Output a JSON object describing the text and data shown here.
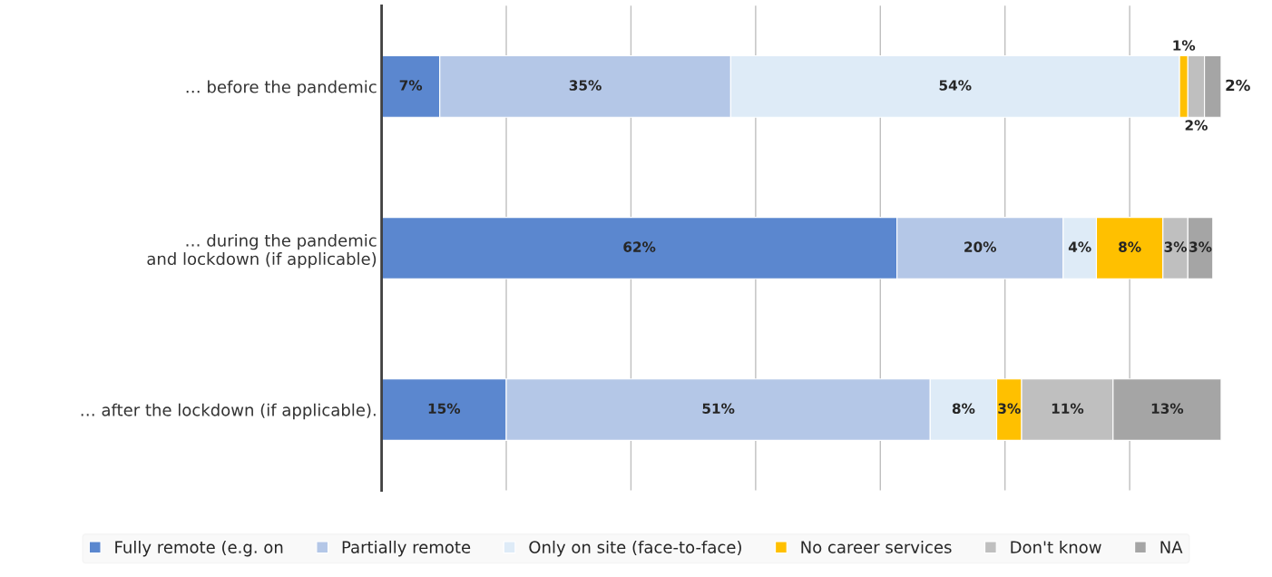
{
  "chart_data": {
    "type": "bar",
    "orientation": "horizontal",
    "stacked": true,
    "categories": [
      "… before the pandemic",
      "… during the pandemic\nand lockdown (if applicable)",
      "… after the lockdown (if applicable)."
    ],
    "series": [
      {
        "name": "Fully remote (e.g. on",
        "color": "#5b87cf",
        "values": [
          7,
          62,
          15
        ],
        "value_labels": [
          "7%",
          "62%",
          "15%"
        ]
      },
      {
        "name": "Partially remote",
        "color": "#b4c7e7",
        "values": [
          35,
          20,
          51
        ],
        "value_labels": [
          "35%",
          "20%",
          "51%"
        ]
      },
      {
        "name": "Only on site (face-to-face)",
        "color": "#deebf7",
        "values": [
          54,
          4,
          8
        ],
        "value_labels": [
          "54%",
          "4%",
          "8%"
        ]
      },
      {
        "name": "No career services",
        "color": "#ffc000",
        "values": [
          1,
          8,
          3
        ],
        "value_labels": [
          "1%",
          "8%",
          "3%"
        ]
      },
      {
        "name": "Don't know",
        "color": "#bfbfbf",
        "values": [
          2,
          3,
          11
        ],
        "value_labels": [
          "2%",
          "3%",
          "11%"
        ]
      },
      {
        "name": "NA",
        "color": "#a5a5a5",
        "values": [
          2,
          3,
          13
        ],
        "value_labels": [
          "2%",
          "3%",
          "13%"
        ]
      }
    ],
    "tick_labels": "y",
    "grid": "x",
    "legend": "bottom"
  }
}
